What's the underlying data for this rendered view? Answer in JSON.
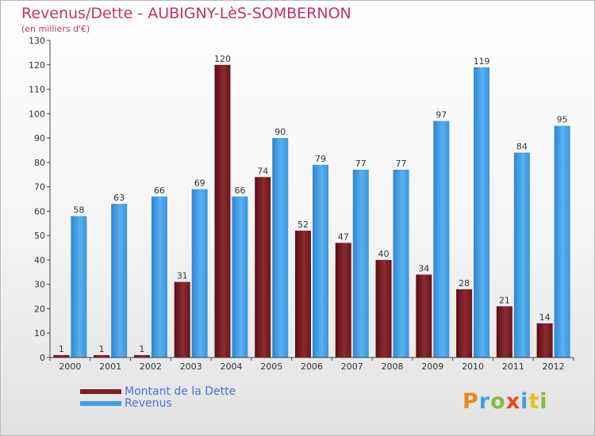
{
  "title": "Revenus/Dette - AUBIGNY-LèS-SOMBERNON",
  "subtitle": "(en milliers d'€)",
  "brand": {
    "text": "Proxiti",
    "letter_colors": [
      "#e88a1a",
      "#3f9fe6",
      "#7ac142",
      "#e8481c",
      "#3f9fe6",
      "#e8c21a",
      "#7ac142"
    ]
  },
  "colors": {
    "debt": "#7a1f24",
    "revenue": "#3f9fe6",
    "axis": "#444444",
    "grid": "#cfcfcf"
  },
  "chart_data": {
    "type": "bar",
    "title": "Revenus/Dette - AUBIGNY-LèS-SOMBERNON",
    "subtitle": "(en milliers d'€)",
    "xlabel": "",
    "ylabel": "",
    "ylim": [
      0,
      130
    ],
    "yticks": [
      0,
      10,
      20,
      30,
      40,
      50,
      60,
      70,
      80,
      90,
      100,
      110,
      120,
      130
    ],
    "grid": false,
    "legend_position": "bottom-left",
    "categories": [
      "2000",
      "2001",
      "2002",
      "2003",
      "2004",
      "2005",
      "2006",
      "2007",
      "2008",
      "2009",
      "2010",
      "2011",
      "2012"
    ],
    "series": [
      {
        "name": "Montant de la Dette",
        "values": [
          1,
          1,
          1,
          31,
          120,
          74,
          52,
          47,
          40,
          34,
          28,
          21,
          14
        ]
      },
      {
        "name": "Revenus",
        "values": [
          58,
          63,
          66,
          69,
          66,
          90,
          79,
          77,
          77,
          97,
          119,
          84,
          95
        ]
      }
    ]
  }
}
